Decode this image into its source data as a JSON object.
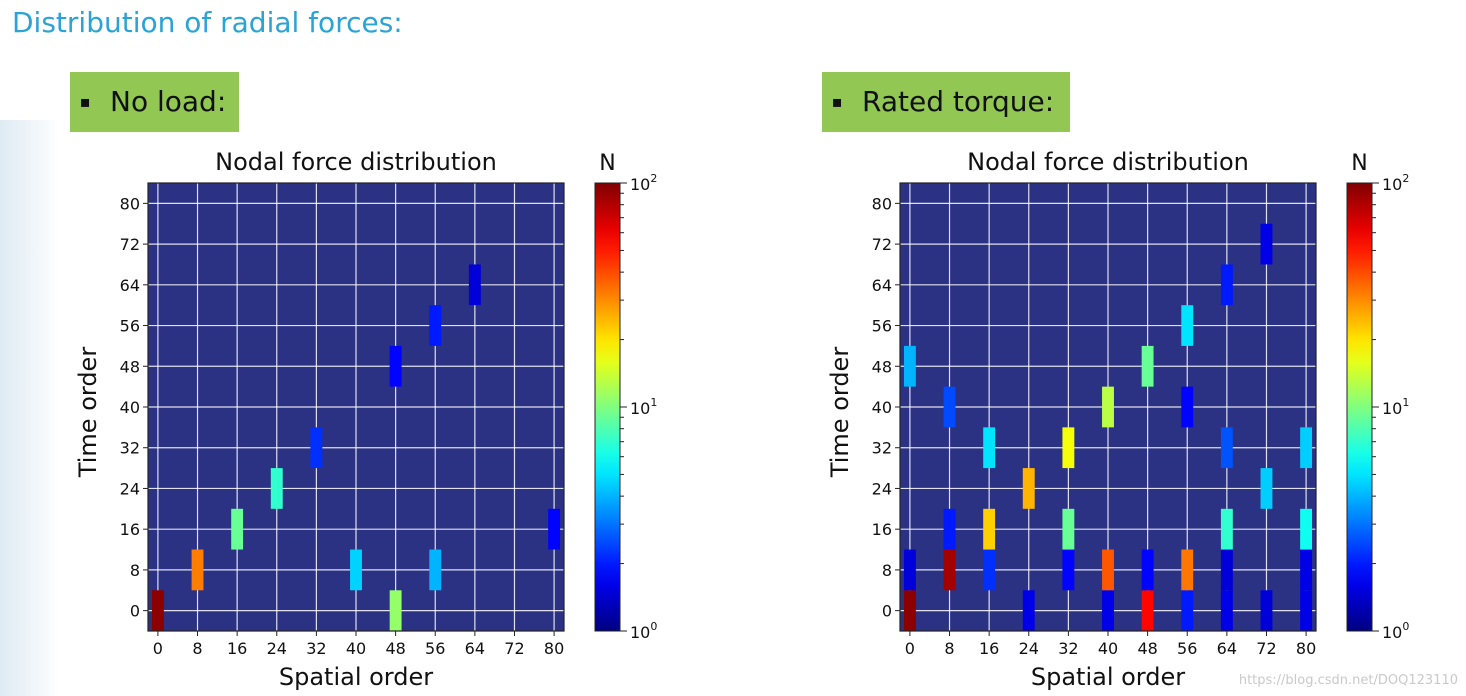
{
  "page": {
    "title": "Distribution of radial forces:",
    "panels": [
      {
        "bullet": "▪",
        "label": "No load:"
      },
      {
        "bullet": "▪",
        "label": "Rated torque:"
      }
    ],
    "watermark": "https://blog.csdn.net/DOQ123110"
  },
  "colors": {
    "title": "#2aa3d6",
    "tag_bg": "#92c754",
    "plot_bg": "#2b3183",
    "grid": "#ffffff"
  },
  "chart_data": [
    {
      "type": "heatmap",
      "title": "Nodal force distribution",
      "xlabel": "Spatial order",
      "ylabel": "Time order",
      "xticks": [
        0,
        8,
        16,
        24,
        32,
        40,
        48,
        56,
        64,
        72,
        80
      ],
      "yticks": [
        0,
        8,
        16,
        24,
        32,
        40,
        48,
        56,
        64,
        72,
        80
      ],
      "xlim": [
        -2,
        82
      ],
      "ylim": [
        -4,
        84
      ],
      "colorbar": {
        "label": "N",
        "scale": "log",
        "min": 1,
        "max": 100,
        "tick_base": "10",
        "tick_exps": [
          "0",
          "1",
          "2"
        ]
      },
      "cells": [
        {
          "x": 0,
          "y": 0,
          "value": 95
        },
        {
          "x": 8,
          "y": 8,
          "value": 32
        },
        {
          "x": 16,
          "y": 16,
          "value": 9
        },
        {
          "x": 24,
          "y": 24,
          "value": 7
        },
        {
          "x": 32,
          "y": 32,
          "value": 2.2
        },
        {
          "x": 40,
          "y": 8,
          "value": 4.6
        },
        {
          "x": 48,
          "y": 0,
          "value": 11
        },
        {
          "x": 48,
          "y": 48,
          "value": 1.8
        },
        {
          "x": 56,
          "y": 8,
          "value": 4
        },
        {
          "x": 56,
          "y": 56,
          "value": 2
        },
        {
          "x": 64,
          "y": 64,
          "value": 1.5
        },
        {
          "x": 80,
          "y": 16,
          "value": 1.8
        }
      ]
    },
    {
      "type": "heatmap",
      "title": "Nodal force distribution",
      "xlabel": "Spatial order",
      "ylabel": "Time order",
      "xticks": [
        0,
        8,
        16,
        24,
        32,
        40,
        48,
        56,
        64,
        72,
        80
      ],
      "yticks": [
        0,
        8,
        16,
        24,
        32,
        40,
        48,
        56,
        64,
        72,
        80
      ],
      "xlim": [
        -2,
        82
      ],
      "ylim": [
        -4,
        84
      ],
      "colorbar": {
        "label": "N",
        "scale": "log",
        "min": 1,
        "max": 100,
        "tick_base": "10",
        "tick_exps": [
          "0",
          "1",
          "2"
        ]
      },
      "cells": [
        {
          "x": 0,
          "y": 0,
          "value": 95
        },
        {
          "x": 0,
          "y": 8,
          "value": 1.5
        },
        {
          "x": 0,
          "y": 48,
          "value": 4
        },
        {
          "x": 8,
          "y": 8,
          "value": 85
        },
        {
          "x": 8,
          "y": 16,
          "value": 2
        },
        {
          "x": 8,
          "y": 40,
          "value": 2.5
        },
        {
          "x": 16,
          "y": 8,
          "value": 2.2
        },
        {
          "x": 16,
          "y": 16,
          "value": 22
        },
        {
          "x": 16,
          "y": 32,
          "value": 5
        },
        {
          "x": 24,
          "y": 0,
          "value": 1.6
        },
        {
          "x": 24,
          "y": 24,
          "value": 25
        },
        {
          "x": 32,
          "y": 8,
          "value": 1.8
        },
        {
          "x": 32,
          "y": 16,
          "value": 9
        },
        {
          "x": 32,
          "y": 32,
          "value": 17
        },
        {
          "x": 40,
          "y": 0,
          "value": 1.6
        },
        {
          "x": 40,
          "y": 8,
          "value": 38
        },
        {
          "x": 40,
          "y": 40,
          "value": 13
        },
        {
          "x": 48,
          "y": 0,
          "value": 55
        },
        {
          "x": 48,
          "y": 8,
          "value": 1.8
        },
        {
          "x": 48,
          "y": 48,
          "value": 9
        },
        {
          "x": 56,
          "y": 0,
          "value": 2
        },
        {
          "x": 56,
          "y": 8,
          "value": 33
        },
        {
          "x": 56,
          "y": 40,
          "value": 1.8
        },
        {
          "x": 56,
          "y": 56,
          "value": 5
        },
        {
          "x": 64,
          "y": 0,
          "value": 1.6
        },
        {
          "x": 64,
          "y": 8,
          "value": 1.5
        },
        {
          "x": 64,
          "y": 16,
          "value": 7
        },
        {
          "x": 64,
          "y": 32,
          "value": 2.6
        },
        {
          "x": 64,
          "y": 64,
          "value": 2
        },
        {
          "x": 72,
          "y": 0,
          "value": 1.5
        },
        {
          "x": 72,
          "y": 24,
          "value": 4.5
        },
        {
          "x": 72,
          "y": 72,
          "value": 1.6
        },
        {
          "x": 80,
          "y": 0,
          "value": 1.6
        },
        {
          "x": 80,
          "y": 8,
          "value": 1.6
        },
        {
          "x": 80,
          "y": 16,
          "value": 6
        },
        {
          "x": 80,
          "y": 32,
          "value": 4.5
        }
      ]
    }
  ]
}
